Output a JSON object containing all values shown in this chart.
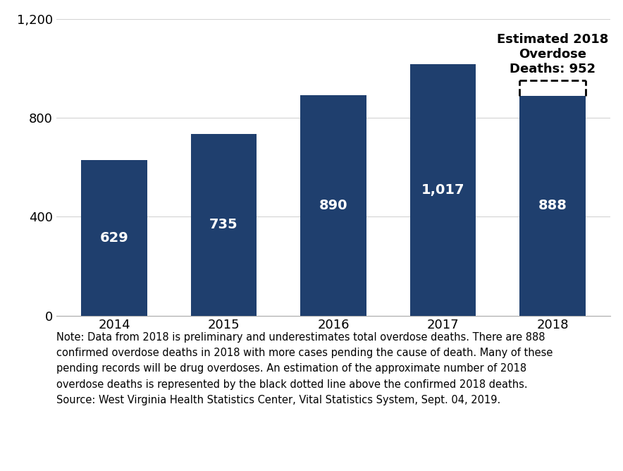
{
  "categories": [
    "2014",
    "2015",
    "2016",
    "2017",
    "2018"
  ],
  "values": [
    629,
    735,
    890,
    1017,
    888
  ],
  "bar_color": "#1F3F6E",
  "bar_labels": [
    "629",
    "735",
    "890",
    "1,017",
    "888"
  ],
  "estimated_value": 952,
  "estimated_label": "Estimated 2018\nOverdose\nDeaths: 952",
  "ylim": [
    0,
    1200
  ],
  "yticks": [
    0,
    400,
    800,
    1200
  ],
  "ytick_labels": [
    "0",
    "400",
    "800",
    "1,200"
  ],
  "bar_label_fontsize": 14,
  "axis_tick_fontsize": 13,
  "note_text": "Note: Data from 2018 is preliminary and underestimates total overdose deaths. There are 888\nconfirmed overdose deaths in 2018 with more cases pending the cause of death. Many of these\npending records will be drug overdoses. An estimation of the approximate number of 2018\noverdose deaths is represented by the black dotted line above the confirmed 2018 deaths.\nSource: West Virginia Health Statistics Center, Vital Statistics System, Sept. 04, 2019.",
  "note_fontsize": 10.5,
  "background_color": "#ffffff",
  "grid_color": "#d3d3d3",
  "annotation_fontsize": 13
}
